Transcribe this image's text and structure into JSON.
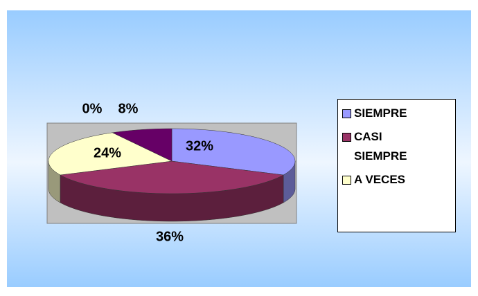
{
  "chart_data": {
    "type": "pie",
    "categories": [
      "SIEMPRE",
      "CASI SIEMPRE",
      "A VECES",
      null,
      null
    ],
    "values": [
      32,
      36,
      24,
      0,
      8
    ],
    "value_labels": [
      "32%",
      "36%",
      "24%",
      "0%",
      "8%"
    ],
    "colors": [
      "#9999ff",
      "#993366",
      "#ffffcc",
      "#ffffff",
      "#660066"
    ],
    "legend": "right"
  }
}
